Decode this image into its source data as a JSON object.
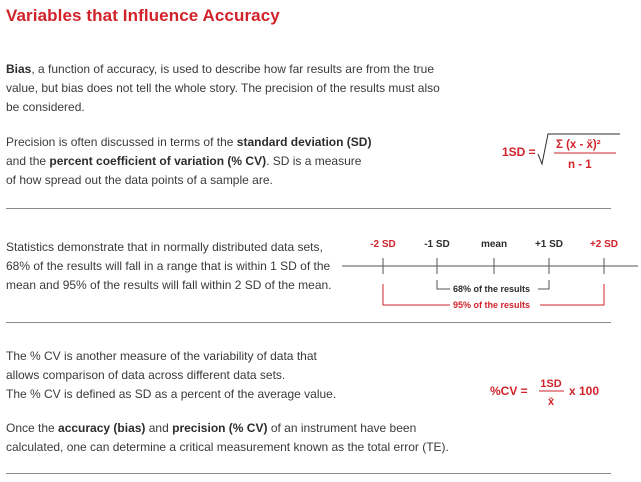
{
  "title": "Variables that Influence Accuracy",
  "bias": {
    "term": "Bias",
    "line1_rest": ", a function of accuracy, is used to describe how far results are from the true",
    "line2": "value, but bias does not tell the whole story. The precision of the results must also",
    "line3": "be considered."
  },
  "precision": {
    "line1_pre": "Precision is often discussed in terms of the ",
    "line1_bold": "standard deviation (SD)",
    "line2_pre": "and the ",
    "line2_bold": "percent coefficient of variation (% CV)",
    "line2_post": ". SD is a measure",
    "line3": "of how spread out the data points of a sample are."
  },
  "sd_formula": {
    "lhs": "1SD =",
    "numerator": "Σ (x - x̄)²",
    "denominator": "n - 1"
  },
  "stats": {
    "line1": "Statistics demonstrate that in normally distributed data sets,",
    "line2": "68% of the results will fall in a range that is within 1 SD of the",
    "line3": "mean and 95% of the results will fall within 2 SD of the mean."
  },
  "distribution_diagram": {
    "labels": [
      "-2 SD",
      "-1 SD",
      "mean",
      "+1 SD",
      "+2 SD"
    ],
    "range_68": "68% of the results",
    "range_95": "95% of the results"
  },
  "cv": {
    "line1": "The % CV is another measure of the variability of data that",
    "line2": "allows comparison of data across different data sets.",
    "line3": "The % CV is defined as SD as a percent of the average value."
  },
  "cv_formula": {
    "lhs": "%CV =",
    "numerator": "1SD",
    "denominator": "x̄",
    "multiplier": "x 100"
  },
  "closing": {
    "line1_pre": "Once the ",
    "line1_bold1": "accuracy (bias)",
    "line1_mid": " and ",
    "line1_bold2": "precision (% CV)",
    "line1_post": " of an instrument have been",
    "line2": "calculated, one can determine a critical measurement known as the total error (TE)."
  },
  "colors": {
    "accent": "#d2232a",
    "text": "#3a3a3a",
    "rule": "#8a8a8a"
  }
}
